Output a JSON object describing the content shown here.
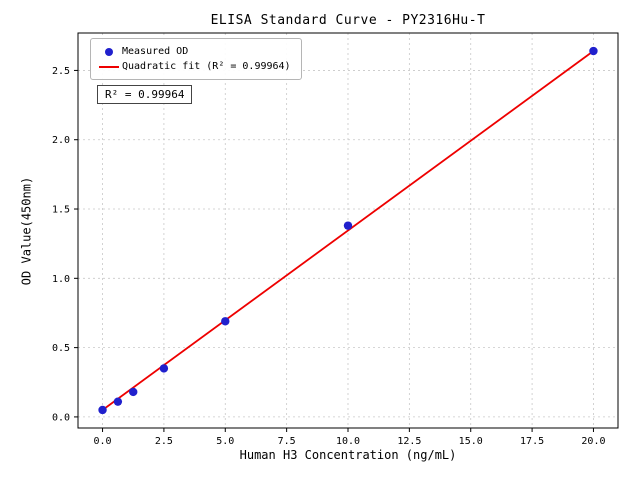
{
  "chart_data": {
    "type": "scatter",
    "title": "ELISA Standard Curve - PY2316Hu-T",
    "xlabel": "Human H3 Concentration (ng/mL)",
    "ylabel": "OD Value(450nm)",
    "xlim": [
      -1.0,
      21.0
    ],
    "ylim": [
      -0.08,
      2.77
    ],
    "x_ticks": [
      0.0,
      2.5,
      5.0,
      7.5,
      10.0,
      12.5,
      15.0,
      17.5,
      20.0
    ],
    "y_ticks": [
      0.0,
      0.5,
      1.0,
      1.5,
      2.0,
      2.5
    ],
    "grid": true,
    "grid_style": "dashed",
    "legend_position": "upper left",
    "annotation": "R² = 0.99964",
    "colors": {
      "background": "#ffffff",
      "axis": "#000000",
      "grid": "#c8c8c8"
    },
    "series": [
      {
        "name": "Measured OD",
        "type": "scatter",
        "color": "#2020cd",
        "x": [
          0,
          0.625,
          1.25,
          2.5,
          5,
          10,
          20
        ],
        "y": [
          0.05,
          0.11,
          0.18,
          0.35,
          0.69,
          1.38,
          2.64
        ]
      },
      {
        "name": "Quadratic fit (R² = 0.99964)",
        "type": "line",
        "color": "#ee0000",
        "x": [
          0,
          20
        ],
        "y": [
          0.05,
          2.64
        ]
      }
    ]
  }
}
